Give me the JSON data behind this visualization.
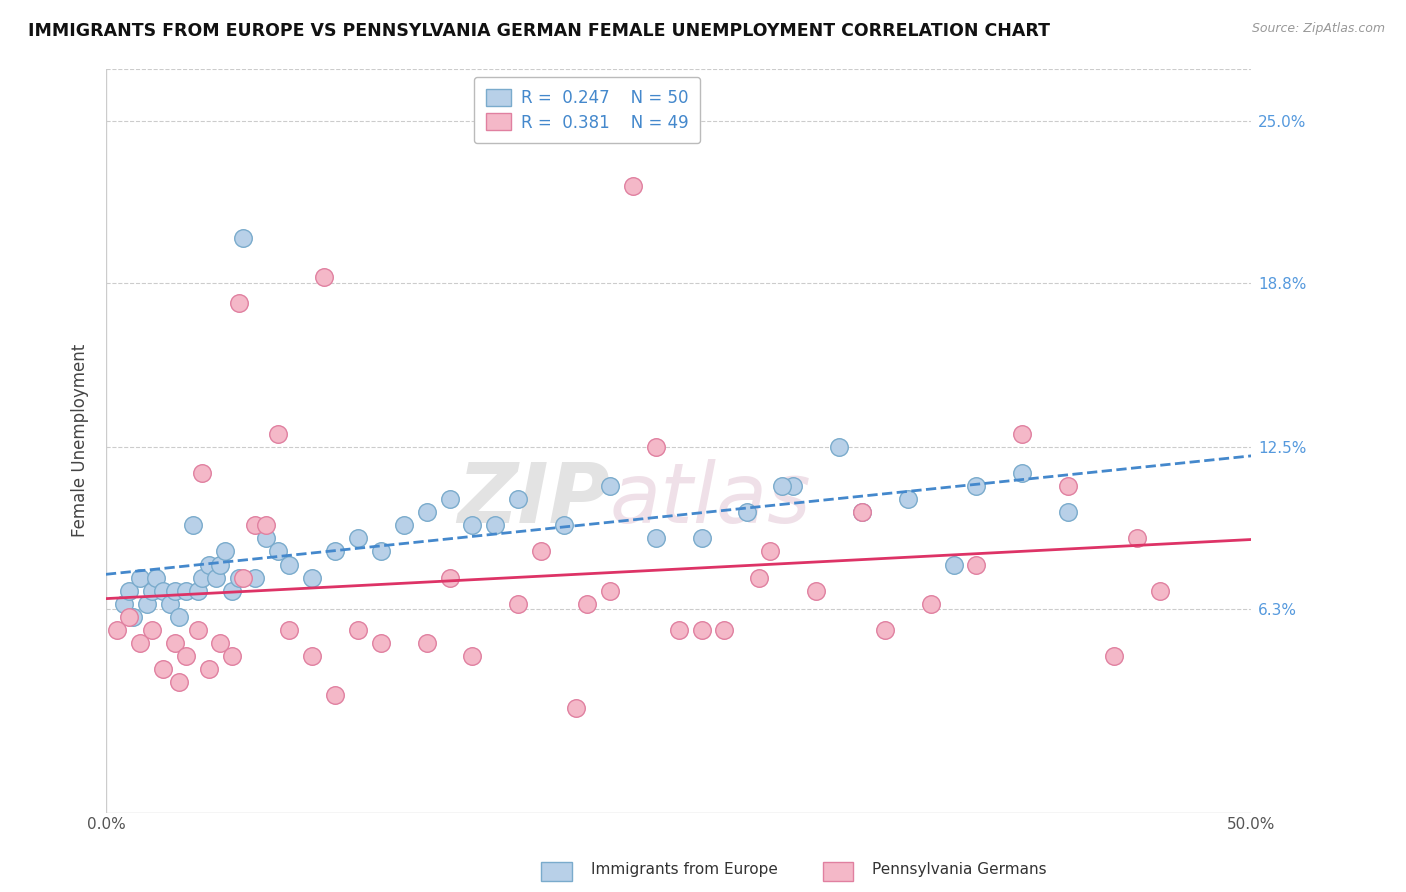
{
  "title": "IMMIGRANTS FROM EUROPE VS PENNSYLVANIA GERMAN FEMALE UNEMPLOYMENT CORRELATION CHART",
  "source": "Source: ZipAtlas.com",
  "ylabel": "Female Unemployment",
  "yticks": [
    6.3,
    12.5,
    18.8,
    25.0
  ],
  "xlim": [
    0.0,
    50.0
  ],
  "ylim": [
    -1.5,
    27.0
  ],
  "blue_color": "#b8d0e8",
  "blue_edge": "#7aabcc",
  "pink_color": "#f4b8c8",
  "pink_edge": "#e080a0",
  "blue_line_color": "#4488cc",
  "pink_line_color": "#dd3366",
  "legend_r1": "R =  0.247",
  "legend_n1": "N = 50",
  "legend_r2": "R =  0.381",
  "legend_n2": "N = 49",
  "watermark_zip": "ZIP",
  "watermark_atlas": "atlas",
  "series1_label": "Immigrants from Europe",
  "series2_label": "Pennsylvania Germans",
  "blue_x": [
    0.8,
    1.0,
    1.2,
    1.5,
    1.8,
    2.0,
    2.2,
    2.5,
    2.8,
    3.0,
    3.2,
    3.5,
    3.8,
    4.0,
    4.2,
    4.5,
    4.8,
    5.0,
    5.2,
    5.5,
    5.8,
    6.0,
    6.5,
    7.0,
    8.0,
    9.0,
    10.0,
    11.0,
    12.0,
    13.0,
    14.0,
    16.0,
    17.0,
    18.0,
    20.0,
    22.0,
    24.0,
    26.0,
    28.0,
    30.0,
    32.0,
    35.0,
    37.0,
    38.0,
    40.0,
    42.0,
    33.0,
    29.5,
    7.5,
    15.0
  ],
  "blue_y": [
    6.5,
    7.0,
    6.0,
    7.5,
    6.5,
    7.0,
    7.5,
    7.0,
    6.5,
    7.0,
    6.0,
    7.0,
    9.5,
    7.0,
    7.5,
    8.0,
    7.5,
    8.0,
    8.5,
    7.0,
    7.5,
    20.5,
    7.5,
    9.0,
    8.0,
    7.5,
    8.5,
    9.0,
    8.5,
    9.5,
    10.0,
    9.5,
    9.5,
    10.5,
    9.5,
    11.0,
    9.0,
    9.0,
    10.0,
    11.0,
    12.5,
    10.5,
    8.0,
    11.0,
    11.5,
    10.0,
    10.0,
    11.0,
    8.5,
    10.5
  ],
  "pink_x": [
    0.5,
    1.0,
    1.5,
    2.0,
    2.5,
    3.0,
    3.5,
    4.0,
    4.5,
    5.0,
    5.5,
    6.5,
    7.0,
    8.0,
    9.0,
    11.0,
    12.0,
    14.0,
    16.0,
    18.0,
    21.0,
    23.0,
    25.0,
    27.0,
    29.0,
    31.0,
    34.0,
    36.0,
    38.0,
    40.0,
    42.0,
    44.0,
    46.0,
    3.2,
    4.2,
    5.8,
    7.5,
    9.5,
    15.0,
    19.0,
    22.0,
    24.0,
    26.0,
    33.0,
    45.0,
    10.0,
    20.5,
    6.0,
    28.5
  ],
  "pink_y": [
    5.5,
    6.0,
    5.0,
    5.5,
    4.0,
    5.0,
    4.5,
    5.5,
    4.0,
    5.0,
    4.5,
    9.5,
    9.5,
    5.5,
    4.5,
    5.5,
    5.0,
    5.0,
    4.5,
    6.5,
    6.5,
    22.5,
    5.5,
    5.5,
    8.5,
    7.0,
    5.5,
    6.5,
    8.0,
    13.0,
    11.0,
    4.5,
    7.0,
    3.5,
    11.5,
    18.0,
    13.0,
    19.0,
    7.5,
    8.5,
    7.0,
    12.5,
    5.5,
    10.0,
    9.0,
    3.0,
    2.5,
    7.5,
    7.5
  ]
}
